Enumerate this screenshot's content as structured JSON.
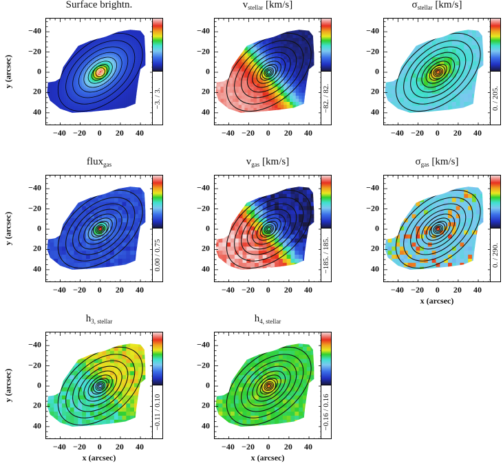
{
  "chart_data": [
    {
      "type": "heatmap",
      "title": {
        "main": "Surface brightn.",
        "sub": "",
        "unit": ""
      },
      "colorbar_range": "−3. / 3.",
      "vmin": -3,
      "vmax": 3,
      "xlim": [
        -54,
        53
      ],
      "ylim": [
        -53,
        53
      ],
      "xticks": [
        "−40",
        "−20",
        "0",
        "20",
        "40"
      ],
      "yticks": [
        "40",
        "20",
        "0",
        "−20",
        "−40"
      ],
      "xlabel": "",
      "ylabel": "y (arcsec)",
      "grid": false
    },
    {
      "type": "heatmap",
      "title": {
        "main": "v",
        "sub": "stellar",
        "unit": " [km/s]"
      },
      "colorbar_range": "−82. / 82.",
      "vmin": -82,
      "vmax": 82,
      "xlim": [
        -54,
        53
      ],
      "ylim": [
        -53,
        53
      ],
      "xticks": [
        "−40",
        "−20",
        "0",
        "20",
        "40"
      ],
      "yticks": [
        "40",
        "20",
        "0",
        "−20",
        "−40"
      ],
      "xlabel": "",
      "ylabel": "",
      "grid": false
    },
    {
      "type": "heatmap",
      "title": {
        "main": "σ",
        "sub": "stellar",
        "unit": " [km/s]"
      },
      "colorbar_range": "0. / 205.",
      "vmin": 0,
      "vmax": 205,
      "xlim": [
        -54,
        53
      ],
      "ylim": [
        -53,
        53
      ],
      "xticks": [
        "−40",
        "−20",
        "0",
        "20",
        "40"
      ],
      "yticks": [
        "40",
        "20",
        "0",
        "−20",
        "−40"
      ],
      "xlabel": "",
      "ylabel": "",
      "grid": false
    },
    {
      "type": "heatmap",
      "title": {
        "main": "flux",
        "sub": "gas",
        "unit": ""
      },
      "colorbar_range": "0.00 / 0.75",
      "vmin": 0.0,
      "vmax": 0.75,
      "xlim": [
        -54,
        53
      ],
      "ylim": [
        -53,
        53
      ],
      "xticks": [
        "−40",
        "−20",
        "0",
        "20",
        "40"
      ],
      "yticks": [
        "40",
        "20",
        "0",
        "−20",
        "−40"
      ],
      "xlabel": "",
      "ylabel": "y (arcsec)",
      "grid": false
    },
    {
      "type": "heatmap",
      "title": {
        "main": "v",
        "sub": "gas",
        "unit": " [km/s]"
      },
      "colorbar_range": "−185. / 185.",
      "vmin": -185,
      "vmax": 185,
      "xlim": [
        -54,
        53
      ],
      "ylim": [
        -53,
        53
      ],
      "xticks": [
        "−40",
        "−20",
        "0",
        "20",
        "40"
      ],
      "yticks": [
        "40",
        "20",
        "0",
        "−20",
        "−40"
      ],
      "xlabel": "",
      "ylabel": "",
      "grid": false
    },
    {
      "type": "heatmap",
      "title": {
        "main": "σ",
        "sub": "gas",
        "unit": " [km/s]"
      },
      "colorbar_range": "0. / 290.",
      "vmin": 0,
      "vmax": 290,
      "xlim": [
        -54,
        53
      ],
      "ylim": [
        -53,
        53
      ],
      "xticks": [
        "−40",
        "−20",
        "0",
        "20",
        "40"
      ],
      "yticks": [
        "40",
        "20",
        "0",
        "−20",
        "−40"
      ],
      "xlabel": "x (arcsec)",
      "ylabel": "",
      "grid": false
    },
    {
      "type": "heatmap",
      "title": {
        "main": "h",
        "sub": "3, stellar",
        "unit": ""
      },
      "colorbar_range": "−0.11 / 0.10",
      "vmin": -0.11,
      "vmax": 0.1,
      "xlim": [
        -54,
        53
      ],
      "ylim": [
        -53,
        53
      ],
      "xticks": [
        "−40",
        "−20",
        "0",
        "20",
        "40"
      ],
      "yticks": [
        "40",
        "20",
        "0",
        "−20",
        "−40"
      ],
      "xlabel": "x (arcsec)",
      "ylabel": "y (arcsec)",
      "grid": false
    },
    {
      "type": "heatmap",
      "title": {
        "main": "h",
        "sub": "4, stellar",
        "unit": ""
      },
      "colorbar_range": "−0.16 / 0.16",
      "vmin": -0.16,
      "vmax": 0.16,
      "xlim": [
        -54,
        53
      ],
      "ylim": [
        -53,
        53
      ],
      "xticks": [
        "−40",
        "−20",
        "0",
        "20",
        "40"
      ],
      "yticks": [
        "40",
        "20",
        "0",
        "−20",
        "−40"
      ],
      "xlabel": "x (arcsec)",
      "ylabel": "",
      "grid": false
    }
  ]
}
